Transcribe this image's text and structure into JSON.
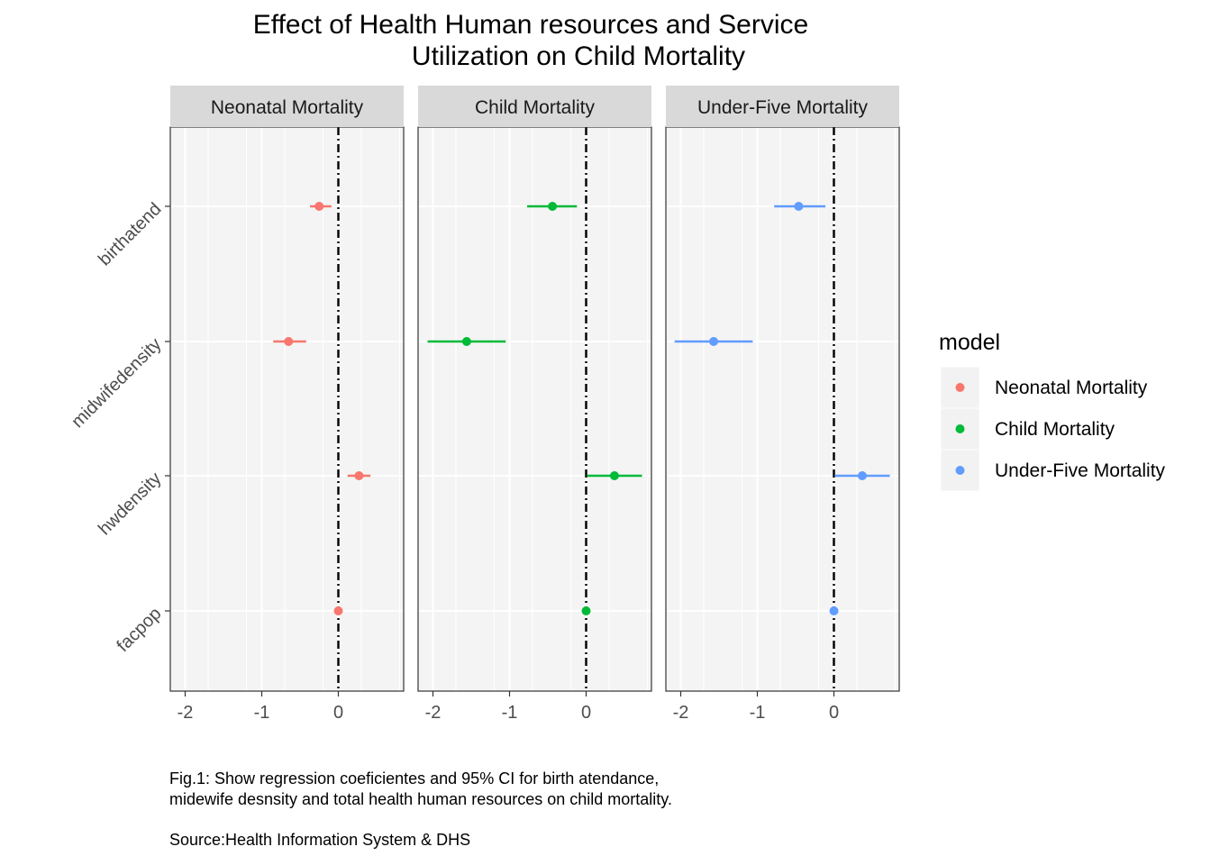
{
  "chart_data": {
    "type": "dot-whisker",
    "title_lines": [
      "Effect of Health Human resources and Service",
      "Utilization on Child Mortality"
    ],
    "panels": [
      {
        "name": "Neonatal Mortality",
        "color": "#F8766D",
        "points": [
          {
            "term": "birthatend",
            "estimate": -0.25,
            "low": -0.37,
            "high": -0.09
          },
          {
            "term": "midwifedensity",
            "estimate": -0.65,
            "low": -0.85,
            "high": -0.42
          },
          {
            "term": "hwdensity",
            "estimate": 0.27,
            "low": 0.12,
            "high": 0.42
          },
          {
            "term": "facpop",
            "estimate": 0.0,
            "low": 0.0,
            "high": 0.0
          }
        ]
      },
      {
        "name": "Child Mortality",
        "color": "#00BA38",
        "points": [
          {
            "term": "birthatend",
            "estimate": -0.44,
            "low": -0.77,
            "high": -0.12
          },
          {
            "term": "midwifedensity",
            "estimate": -1.56,
            "low": -2.07,
            "high": -1.05
          },
          {
            "term": "hwdensity",
            "estimate": 0.37,
            "low": 0.01,
            "high": 0.73
          },
          {
            "term": "facpop",
            "estimate": 0.0,
            "low": 0.0,
            "high": 0.0
          }
        ]
      },
      {
        "name": "Under-Five Mortality",
        "color": "#619CFF",
        "points": [
          {
            "term": "birthatend",
            "estimate": -0.46,
            "low": -0.78,
            "high": -0.11
          },
          {
            "term": "midwifedensity",
            "estimate": -1.57,
            "low": -2.08,
            "high": -1.06
          },
          {
            "term": "hwdensity",
            "estimate": 0.37,
            "low": 0.01,
            "high": 0.73
          },
          {
            "term": "facpop",
            "estimate": 0.0,
            "low": 0.0,
            "high": 0.0
          }
        ]
      }
    ],
    "y_categories": [
      "birthatend",
      "midwifedensity",
      "hwdensity",
      "facpop"
    ],
    "x_ticks": [
      -2,
      -1,
      0
    ],
    "xlim": [
      -2.2,
      0.85
    ],
    "reference_line": {
      "x": 0,
      "style": "dot-dash"
    },
    "grid": true,
    "legend": {
      "title": "model",
      "position": "right",
      "items": [
        "Neonatal Mortality",
        "Child Mortality",
        "Under-Five Mortality"
      ]
    },
    "caption_lines": [
      "Fig.1: Show regression coeficientes and 95% CI for birth atendance,",
      "midewife desnsity and total health human resources on child mortality.",
      "",
      "Source:Health Information System & DHS"
    ]
  }
}
